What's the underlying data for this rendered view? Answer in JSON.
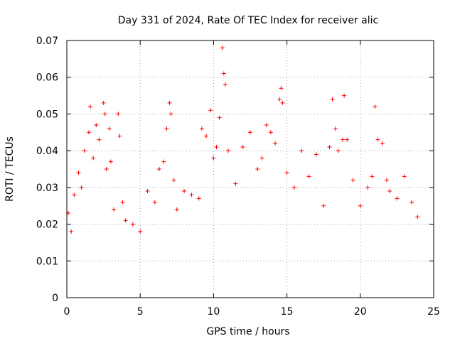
{
  "chart_data": {
    "type": "scatter",
    "title": "Day 331 of 2024, Rate Of TEC Index for receiver alic",
    "xlabel": "GPS time / hours",
    "ylabel": "ROTI / TECUs",
    "xlim": [
      0,
      25
    ],
    "ylim": [
      0,
      0.07
    ],
    "xticks": [
      0,
      5,
      10,
      15,
      20,
      25
    ],
    "xtick_labels": [
      "0",
      "5",
      "10",
      "15",
      "20",
      "25"
    ],
    "yticks": [
      0,
      0.01,
      0.02,
      0.03,
      0.04,
      0.05,
      0.06,
      0.07
    ],
    "ytick_labels": [
      "0",
      "0.01",
      "0.02",
      "0.03",
      "0.04",
      "0.05",
      "0.06",
      "0.07"
    ],
    "grid": true,
    "marker": "+",
    "color": "#ff0000",
    "series": [
      {
        "name": "ROTI",
        "x": [
          0.1,
          0.3,
          0.5,
          0.8,
          1.0,
          1.2,
          1.5,
          1.6,
          1.8,
          2.0,
          2.2,
          2.5,
          2.6,
          2.7,
          2.9,
          3.0,
          3.2,
          3.5,
          3.6,
          3.8,
          4.0,
          4.5,
          5.0,
          5.5,
          6.0,
          6.3,
          6.6,
          6.8,
          7.0,
          7.1,
          7.3,
          7.5,
          8.0,
          8.5,
          9.0,
          9.2,
          9.5,
          9.8,
          10.0,
          10.2,
          10.4,
          10.6,
          10.7,
          10.8,
          11.0,
          11.5,
          12.0,
          12.5,
          13.0,
          13.3,
          13.6,
          13.9,
          14.2,
          14.5,
          14.6,
          14.7,
          15.0,
          15.5,
          16.0,
          16.5,
          17.0,
          17.5,
          17.9,
          18.1,
          18.3,
          18.5,
          18.8,
          18.9,
          19.1,
          19.5,
          20.0,
          20.5,
          20.8,
          21.0,
          21.2,
          21.5,
          21.8,
          22.0,
          22.5,
          23.0,
          23.5,
          23.9
        ],
        "y": [
          0.023,
          0.018,
          0.028,
          0.034,
          0.03,
          0.04,
          0.045,
          0.052,
          0.038,
          0.047,
          0.043,
          0.053,
          0.05,
          0.035,
          0.046,
          0.037,
          0.024,
          0.05,
          0.044,
          0.026,
          0.021,
          0.02,
          0.018,
          0.029,
          0.026,
          0.035,
          0.037,
          0.046,
          0.053,
          0.05,
          0.032,
          0.024,
          0.029,
          0.028,
          0.027,
          0.046,
          0.044,
          0.051,
          0.038,
          0.041,
          0.049,
          0.068,
          0.061,
          0.058,
          0.04,
          0.031,
          0.041,
          0.045,
          0.035,
          0.038,
          0.047,
          0.045,
          0.042,
          0.054,
          0.057,
          0.053,
          0.034,
          0.03,
          0.04,
          0.033,
          0.039,
          0.025,
          0.041,
          0.054,
          0.046,
          0.04,
          0.043,
          0.055,
          0.043,
          0.032,
          0.025,
          0.03,
          0.033,
          0.052,
          0.043,
          0.042,
          0.032,
          0.029,
          0.027,
          0.033,
          0.026,
          0.022
        ]
      }
    ]
  }
}
